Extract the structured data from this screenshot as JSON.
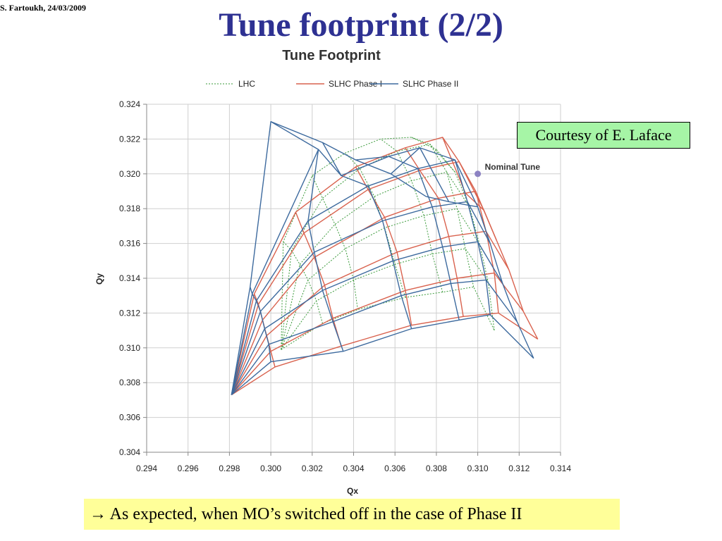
{
  "slide": {
    "author_date": "S. Fartoukh, 24/03/2009",
    "title": "Tune footprint (2/2)",
    "courtesy": "Courtesy of E. Laface",
    "footnote": "→ As expected, when MO’s switched off in the case of Phase II"
  },
  "colors": {
    "title": "#2e3192",
    "lhc": "#3a9a3a",
    "slhc_phase1": "#d9624e",
    "slhc_phase2": "#3d6a9e",
    "nominal": "#8c82c2",
    "courtesy_bg": "#a6f5a6",
    "footnote_bg": "#ffff99"
  },
  "chart_data": {
    "type": "line",
    "title": "Tune Footprint",
    "xlabel": "Qx",
    "ylabel": "Qy",
    "xlim": [
      0.294,
      0.314
    ],
    "ylim": [
      0.304,
      0.324
    ],
    "xticks": [
      "0.294",
      "0.296",
      "0.298",
      "0.300",
      "0.302",
      "0.304",
      "0.306",
      "0.308",
      "0.310",
      "0.312",
      "0.314"
    ],
    "yticks": [
      "0.304",
      "0.306",
      "0.308",
      "0.310",
      "0.312",
      "0.314",
      "0.316",
      "0.318",
      "0.320",
      "0.322",
      "0.324"
    ],
    "grid": true,
    "legend_position": "top",
    "legend": [
      "LHC",
      "SLHC Phase I",
      "SLHC Phase II"
    ],
    "series": [
      {
        "name": "LHC",
        "style": "dotted",
        "color": "#3a9a3a",
        "origin": [
          0.3005,
          0.3099
        ],
        "spokes": [
          [
            [
              0.3025,
              0.3114
            ],
            [
              0.3042,
              0.3122
            ],
            [
              0.3065,
              0.3129
            ],
            [
              0.3083,
              0.3132
            ],
            [
              0.3098,
              0.3135
            ],
            [
              0.3108,
              0.311
            ]
          ],
          [
            [
              0.3022,
              0.3127
            ],
            [
              0.304,
              0.3139
            ],
            [
              0.306,
              0.3148
            ],
            [
              0.3078,
              0.3154
            ],
            [
              0.3094,
              0.3157
            ],
            [
              0.3105,
              0.3138
            ]
          ],
          [
            [
              0.3018,
              0.3139
            ],
            [
              0.3036,
              0.3157
            ],
            [
              0.3055,
              0.3169
            ],
            [
              0.3074,
              0.3176
            ],
            [
              0.309,
              0.318
            ],
            [
              0.3101,
              0.3159
            ]
          ],
          [
            [
              0.3014,
              0.3148
            ],
            [
              0.3031,
              0.3171
            ],
            [
              0.305,
              0.3187
            ],
            [
              0.3068,
              0.3196
            ],
            [
              0.3085,
              0.3201
            ],
            [
              0.3096,
              0.3181
            ]
          ],
          [
            [
              0.301,
              0.3156
            ],
            [
              0.3025,
              0.3186
            ],
            [
              0.3043,
              0.3203
            ],
            [
              0.3061,
              0.3213
            ],
            [
              0.3077,
              0.3217
            ],
            [
              0.3089,
              0.3201
            ]
          ],
          [
            [
              0.3006,
              0.3161
            ],
            [
              0.302,
              0.3199
            ],
            [
              0.3036,
              0.3212
            ],
            [
              0.3053,
              0.322
            ],
            [
              0.3068,
              0.3221
            ],
            [
              0.308,
              0.3214
            ]
          ]
        ]
      },
      {
        "name": "SLHC Phase I",
        "style": "solid",
        "color": "#d9624e",
        "origin": [
          0.2981,
          0.3073
        ],
        "spokes": [
          [
            [
              0.3002,
              0.3089
            ],
            [
              0.3034,
              0.3101
            ],
            [
              0.3068,
              0.3113
            ],
            [
              0.3093,
              0.3118
            ],
            [
              0.311,
              0.312
            ],
            [
              0.3129,
              0.3105
            ]
          ],
          [
            [
              0.3,
              0.3098
            ],
            [
              0.303,
              0.3117
            ],
            [
              0.3065,
              0.3133
            ],
            [
              0.309,
              0.314
            ],
            [
              0.3108,
              0.3143
            ],
            [
              0.3122,
              0.3121
            ]
          ],
          [
            [
              0.2998,
              0.3107
            ],
            [
              0.3026,
              0.3136
            ],
            [
              0.3061,
              0.3155
            ],
            [
              0.3086,
              0.3164
            ],
            [
              0.3104,
              0.3167
            ],
            [
              0.3115,
              0.3145
            ]
          ],
          [
            [
              0.2996,
              0.3116
            ],
            [
              0.3021,
              0.3152
            ],
            [
              0.3055,
              0.3175
            ],
            [
              0.3081,
              0.3186
            ],
            [
              0.3099,
              0.319
            ],
            [
              0.3109,
              0.3162
            ]
          ],
          [
            [
              0.2994,
              0.3125
            ],
            [
              0.3016,
              0.3166
            ],
            [
              0.3047,
              0.3191
            ],
            [
              0.3072,
              0.3202
            ],
            [
              0.3091,
              0.3207
            ],
            [
              0.3103,
              0.3179
            ]
          ],
          [
            [
              0.2992,
              0.3131
            ],
            [
              0.3012,
              0.3178
            ],
            [
              0.3041,
              0.3204
            ],
            [
              0.3065,
              0.3215
            ],
            [
              0.3083,
              0.3221
            ],
            [
              0.3094,
              0.3189
            ]
          ]
        ]
      },
      {
        "name": "SLHC Phase II",
        "style": "solid",
        "color": "#3d6a9e",
        "origin": [
          0.2981,
          0.3073
        ],
        "spokes": [
          [
            [
              0.3,
              0.3092
            ],
            [
              0.3035,
              0.3098
            ],
            [
              0.3068,
              0.3111
            ],
            [
              0.3091,
              0.3116
            ],
            [
              0.3106,
              0.3119
            ],
            [
              0.3127,
              0.3094
            ]
          ],
          [
            [
              0.2999,
              0.3102
            ],
            [
              0.303,
              0.3115
            ],
            [
              0.3063,
              0.313
            ],
            [
              0.3087,
              0.3137
            ],
            [
              0.3104,
              0.3139
            ],
            [
              0.3119,
              0.3115
            ]
          ],
          [
            [
              0.2997,
              0.3111
            ],
            [
              0.3025,
              0.3133
            ],
            [
              0.3059,
              0.315
            ],
            [
              0.3083,
              0.3158
            ],
            [
              0.31,
              0.3161
            ],
            [
              0.3112,
              0.3137
            ]
          ],
          [
            [
              0.2995,
              0.3121
            ],
            [
              0.3021,
              0.3155
            ],
            [
              0.3054,
              0.3173
            ],
            [
              0.3078,
              0.3181
            ],
            [
              0.3095,
              0.3184
            ],
            [
              0.3106,
              0.316
            ]
          ],
          [
            [
              0.2993,
              0.3127
            ],
            [
              0.3018,
              0.3173
            ],
            [
              0.3047,
              0.3193
            ],
            [
              0.3071,
              0.3203
            ],
            [
              0.3089,
              0.3208
            ],
            [
              0.31,
              0.3181
            ]
          ],
          [
            [
              0.2991,
              0.3131
            ],
            [
              0.3023,
              0.3214
            ],
            [
              0.3034,
              0.3199
            ],
            [
              0.3057,
              0.321
            ],
            [
              0.3072,
              0.3215
            ],
            [
              0.3086,
              0.3184
            ]
          ],
          [
            [
              0.299,
              0.3135
            ],
            [
              0.3,
              0.323
            ],
            [
              0.3025,
              0.3218
            ],
            [
              0.3041,
              0.3208
            ],
            [
              0.3058,
              0.32
            ],
            [
              0.3075,
              0.3187
            ]
          ]
        ]
      }
    ],
    "annotation": {
      "label": "Nominal Tune",
      "x": 0.31,
      "y": 0.32
    }
  }
}
